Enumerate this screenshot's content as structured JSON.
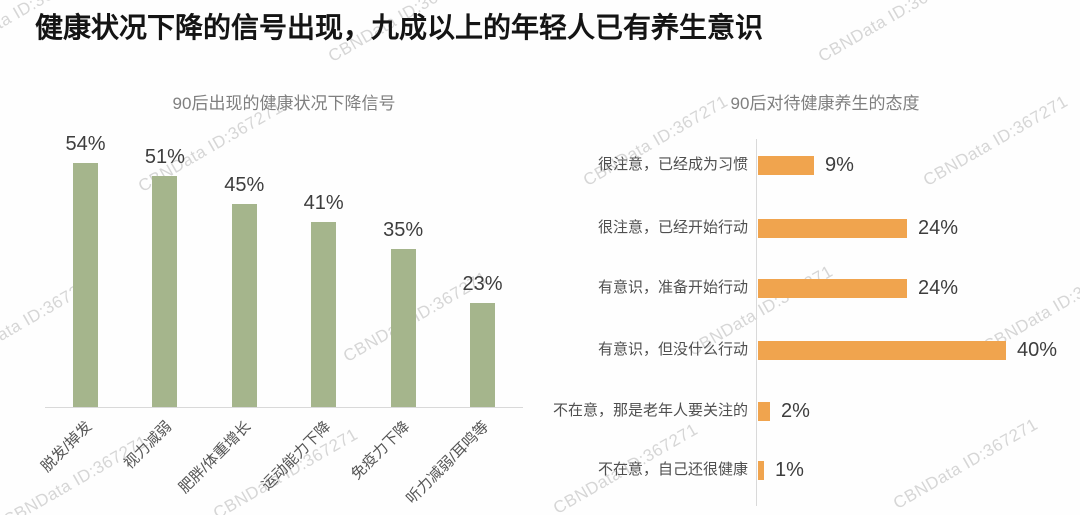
{
  "page_title": "健康状况下降的信号出现，九成以上的年轻人已有养生意识",
  "watermark": {
    "text": "CBNData ID:367271"
  },
  "colors": {
    "title": "#141414",
    "chart_title": "#7f7f7f",
    "green_bar": "#a5b58c",
    "orange_bar": "#f0a44e",
    "axis_line": "#d9d9d9",
    "value_label": "#3d3d3d",
    "category_label": "#4f4f4f",
    "watermark": "#d6d6d6"
  },
  "chart_data": [
    {
      "type": "bar",
      "orientation": "vertical",
      "title": "90后出现的健康状况下降信号",
      "categories": [
        "脱发/掉发",
        "视力减弱",
        "肥胖/体重增长",
        "运动能力下降",
        "免疫力下降",
        "听力减弱/耳鸣等"
      ],
      "values": [
        54,
        51,
        45,
        41,
        35,
        23
      ],
      "data_labels": [
        "54%",
        "51%",
        "45%",
        "41%",
        "35%",
        "23%"
      ],
      "unit": "%",
      "ylim": [
        0,
        60
      ],
      "grid": false,
      "legend": false,
      "bar_color": "#a5b58c"
    },
    {
      "type": "bar",
      "orientation": "horizontal",
      "title": "90后对待健康养生的态度",
      "categories": [
        "很注意，已经成为习惯",
        "很注意，已经开始行动",
        "有意识，准备开始行动",
        "有意识，但没什么行动",
        "不在意，那是老年人要关注的",
        "不在意，自己还很健康"
      ],
      "values": [
        9,
        24,
        24,
        40,
        2,
        1
      ],
      "data_labels": [
        "9%",
        "24%",
        "24%",
        "40%",
        "2%",
        "1%"
      ],
      "unit": "%",
      "xlim": [
        0,
        45
      ],
      "grid": false,
      "legend": false,
      "bar_color": "#f0a44e"
    }
  ]
}
